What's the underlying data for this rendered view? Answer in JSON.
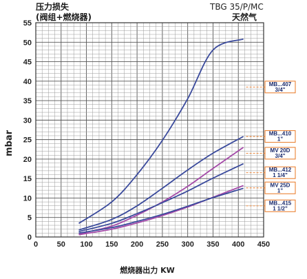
{
  "chart_data": {
    "type": "line",
    "title_left_line1": "压力损失",
    "title_left_line2": "(阀组+燃烧器)",
    "title_right_line1": "TBG 35/P/MC",
    "title_right_line2": "天然气",
    "ylabel": "mbar",
    "xlabel": "燃烧器出力 KW",
    "xlim": [
      0,
      450
    ],
    "ylim": [
      0,
      55
    ],
    "x_ticks": [
      0,
      50,
      100,
      150,
      200,
      250,
      300,
      350,
      400,
      450
    ],
    "y_ticks": [
      0,
      5,
      10,
      15,
      20,
      25,
      30,
      35,
      40,
      45,
      50,
      55
    ],
    "grid": true,
    "series": [
      {
        "color": "#3a4a9c",
        "x": [
          85,
          150,
          200,
          250,
          300,
          350,
          410
        ],
        "y": [
          3.5,
          9.0,
          16.0,
          24.8,
          35.5,
          48.0,
          50.8
        ]
      },
      {
        "color": "#3a4a9c",
        "x": [
          85,
          150,
          200,
          250,
          300,
          350,
          410
        ],
        "y": [
          1.8,
          4.5,
          8.0,
          12.5,
          17.2,
          21.5,
          25.8
        ]
      },
      {
        "color": "#a44aa8",
        "x": [
          85,
          150,
          200,
          250,
          300,
          350,
          410
        ],
        "y": [
          0.8,
          2.8,
          5.6,
          9.0,
          13.0,
          17.6,
          23.0
        ]
      },
      {
        "color": "#3a4a9c",
        "x": [
          85,
          150,
          200,
          250,
          300,
          350,
          410
        ],
        "y": [
          1.4,
          3.5,
          6.0,
          8.8,
          11.8,
          15.1,
          18.8
        ]
      },
      {
        "color": "#a44aa8",
        "x": [
          85,
          150,
          200,
          250,
          300,
          350,
          410
        ],
        "y": [
          0.6,
          2.0,
          3.6,
          5.5,
          7.7,
          10.2,
          13.2
        ]
      },
      {
        "color": "#3a4a9c",
        "x": [
          85,
          150,
          200,
          250,
          300,
          350,
          410
        ],
        "y": [
          1.0,
          2.4,
          4.0,
          5.8,
          7.9,
          10.1,
          12.5
        ]
      }
    ],
    "legend_boxes": [
      {
        "line1": "MB...407",
        "line2": "3/4\"",
        "y_value": 38.5,
        "ends_at_y": 38.5
      },
      {
        "line1": "MB...410",
        "line2": "1\"",
        "y_value": 25.8,
        "ends_at_y": 25.8
      },
      {
        "line1": "MV 20D",
        "line2": "3/4\"",
        "y_value": 21.5,
        "ends_at_y": 21.5
      },
      {
        "line1": "MB...412",
        "line2": "1 1/4\"",
        "y_value": 16.5,
        "ends_at_y": 16.5
      },
      {
        "line1": "MV 25D",
        "line2": "1\"",
        "y_value": 12.6,
        "ends_at_y": 12.6
      },
      {
        "line1": "MB...415",
        "line2": "1 1/2\"",
        "y_value": 8.0,
        "ends_at_y": 8.0
      }
    ]
  }
}
